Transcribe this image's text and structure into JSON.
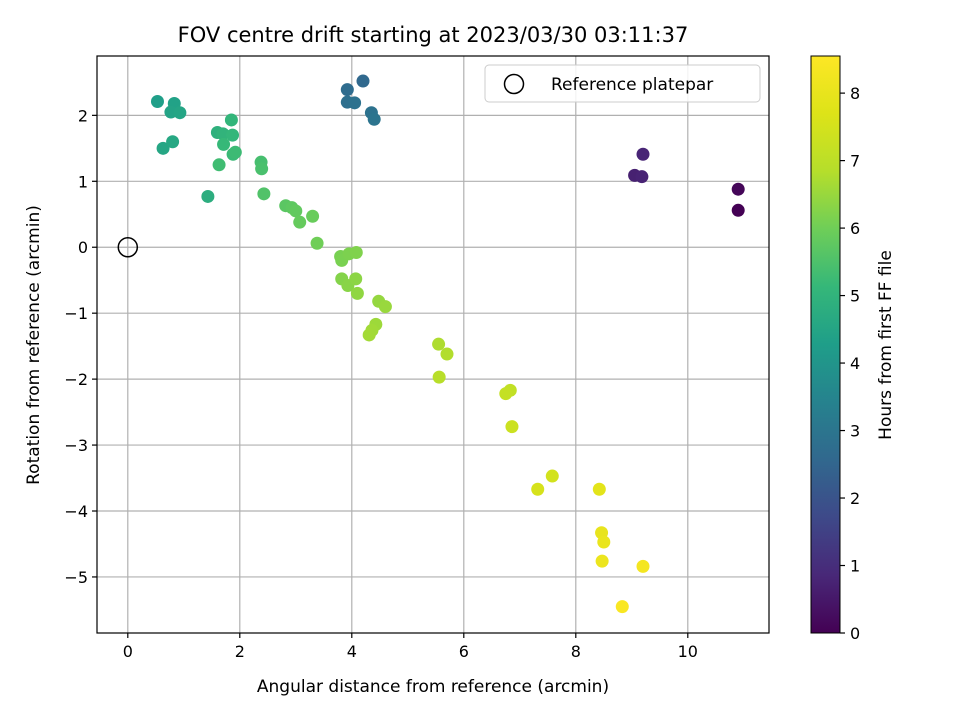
{
  "chart_data": {
    "type": "scatter",
    "title": "FOV centre drift starting at 2023/03/30 03:11:37",
    "xlabel": "Angular distance from reference (arcmin)",
    "ylabel": "Rotation from reference (arcmin)",
    "xlim": [
      -0.55,
      11.45
    ],
    "ylim": [
      -5.85,
      2.9
    ],
    "x_ticks": [
      0,
      2,
      4,
      6,
      8,
      10
    ],
    "y_ticks": [
      -5,
      -4,
      -3,
      -2,
      -1,
      0,
      1,
      2
    ],
    "grid": true,
    "legend": {
      "position": "upper right",
      "entries": [
        "Reference platepar"
      ]
    },
    "colorbar": {
      "label": "Hours from first FF file",
      "colormap": "viridis",
      "range": [
        0,
        8.55
      ],
      "ticks": [
        0,
        1,
        2,
        3,
        4,
        5,
        6,
        7,
        8
      ]
    },
    "reference_point": {
      "x": 0,
      "y": 0,
      "label": "Reference platepar"
    },
    "points": [
      {
        "x": 10.9,
        "y": 0.56,
        "h": 0.0
      },
      {
        "x": 10.9,
        "y": 0.88,
        "h": 0.1
      },
      {
        "x": 9.05,
        "y": 1.09,
        "h": 0.7
      },
      {
        "x": 9.18,
        "y": 1.07,
        "h": 0.75
      },
      {
        "x": 9.2,
        "y": 1.41,
        "h": 0.8
      },
      {
        "x": 4.2,
        "y": 2.52,
        "h": 2.6
      },
      {
        "x": 3.92,
        "y": 2.39,
        "h": 2.7
      },
      {
        "x": 3.92,
        "y": 2.2,
        "h": 2.8
      },
      {
        "x": 4.05,
        "y": 2.19,
        "h": 2.85
      },
      {
        "x": 4.35,
        "y": 2.04,
        "h": 2.9
      },
      {
        "x": 4.4,
        "y": 1.94,
        "h": 2.95
      },
      {
        "x": 0.53,
        "y": 2.21,
        "h": 4.3
      },
      {
        "x": 0.83,
        "y": 2.18,
        "h": 4.4
      },
      {
        "x": 0.77,
        "y": 2.05,
        "h": 4.45
      },
      {
        "x": 0.93,
        "y": 2.04,
        "h": 4.5
      },
      {
        "x": 0.63,
        "y": 1.5,
        "h": 4.55
      },
      {
        "x": 0.8,
        "y": 1.6,
        "h": 4.6
      },
      {
        "x": 1.43,
        "y": 0.77,
        "h": 4.8
      },
      {
        "x": 1.6,
        "y": 1.74,
        "h": 4.9
      },
      {
        "x": 1.7,
        "y": 1.72,
        "h": 5.0
      },
      {
        "x": 1.85,
        "y": 1.93,
        "h": 5.05
      },
      {
        "x": 1.87,
        "y": 1.7,
        "h": 5.1
      },
      {
        "x": 1.71,
        "y": 1.56,
        "h": 5.15
      },
      {
        "x": 1.88,
        "y": 1.41,
        "h": 5.2
      },
      {
        "x": 1.92,
        "y": 1.44,
        "h": 5.25
      },
      {
        "x": 1.63,
        "y": 1.25,
        "h": 5.3
      },
      {
        "x": 2.38,
        "y": 1.29,
        "h": 5.4
      },
      {
        "x": 2.39,
        "y": 1.19,
        "h": 5.45
      },
      {
        "x": 2.43,
        "y": 0.81,
        "h": 5.55
      },
      {
        "x": 2.82,
        "y": 0.63,
        "h": 5.7
      },
      {
        "x": 2.93,
        "y": 0.6,
        "h": 5.75
      },
      {
        "x": 3.0,
        "y": 0.55,
        "h": 5.8
      },
      {
        "x": 3.07,
        "y": 0.38,
        "h": 5.85
      },
      {
        "x": 3.3,
        "y": 0.47,
        "h": 5.9
      },
      {
        "x": 3.38,
        "y": 0.06,
        "h": 6.0
      },
      {
        "x": 3.8,
        "y": -0.14,
        "h": 6.1
      },
      {
        "x": 3.82,
        "y": -0.2,
        "h": 6.12
      },
      {
        "x": 3.95,
        "y": -0.1,
        "h": 6.15
      },
      {
        "x": 4.08,
        "y": -0.08,
        "h": 6.2
      },
      {
        "x": 3.82,
        "y": -0.48,
        "h": 6.25
      },
      {
        "x": 3.93,
        "y": -0.58,
        "h": 6.3
      },
      {
        "x": 4.07,
        "y": -0.48,
        "h": 6.35
      },
      {
        "x": 4.1,
        "y": -0.7,
        "h": 6.4
      },
      {
        "x": 4.48,
        "y": -0.82,
        "h": 6.45
      },
      {
        "x": 4.6,
        "y": -0.9,
        "h": 6.5
      },
      {
        "x": 4.43,
        "y": -1.17,
        "h": 6.55
      },
      {
        "x": 4.36,
        "y": -1.26,
        "h": 6.6
      },
      {
        "x": 4.31,
        "y": -1.33,
        "h": 6.62
      },
      {
        "x": 5.55,
        "y": -1.47,
        "h": 6.75
      },
      {
        "x": 5.7,
        "y": -1.62,
        "h": 6.8
      },
      {
        "x": 5.56,
        "y": -1.97,
        "h": 6.9
      },
      {
        "x": 6.83,
        "y": -2.17,
        "h": 7.1
      },
      {
        "x": 6.75,
        "y": -2.22,
        "h": 7.15
      },
      {
        "x": 6.86,
        "y": -2.72,
        "h": 7.3
      },
      {
        "x": 7.58,
        "y": -3.47,
        "h": 7.45
      },
      {
        "x": 7.32,
        "y": -3.67,
        "h": 7.55
      },
      {
        "x": 8.42,
        "y": -3.67,
        "h": 7.85
      },
      {
        "x": 8.46,
        "y": -4.33,
        "h": 8.0
      },
      {
        "x": 8.5,
        "y": -4.47,
        "h": 8.05
      },
      {
        "x": 8.47,
        "y": -4.76,
        "h": 8.1
      },
      {
        "x": 9.2,
        "y": -4.84,
        "h": 8.3
      },
      {
        "x": 8.83,
        "y": -5.45,
        "h": 8.45
      }
    ]
  }
}
